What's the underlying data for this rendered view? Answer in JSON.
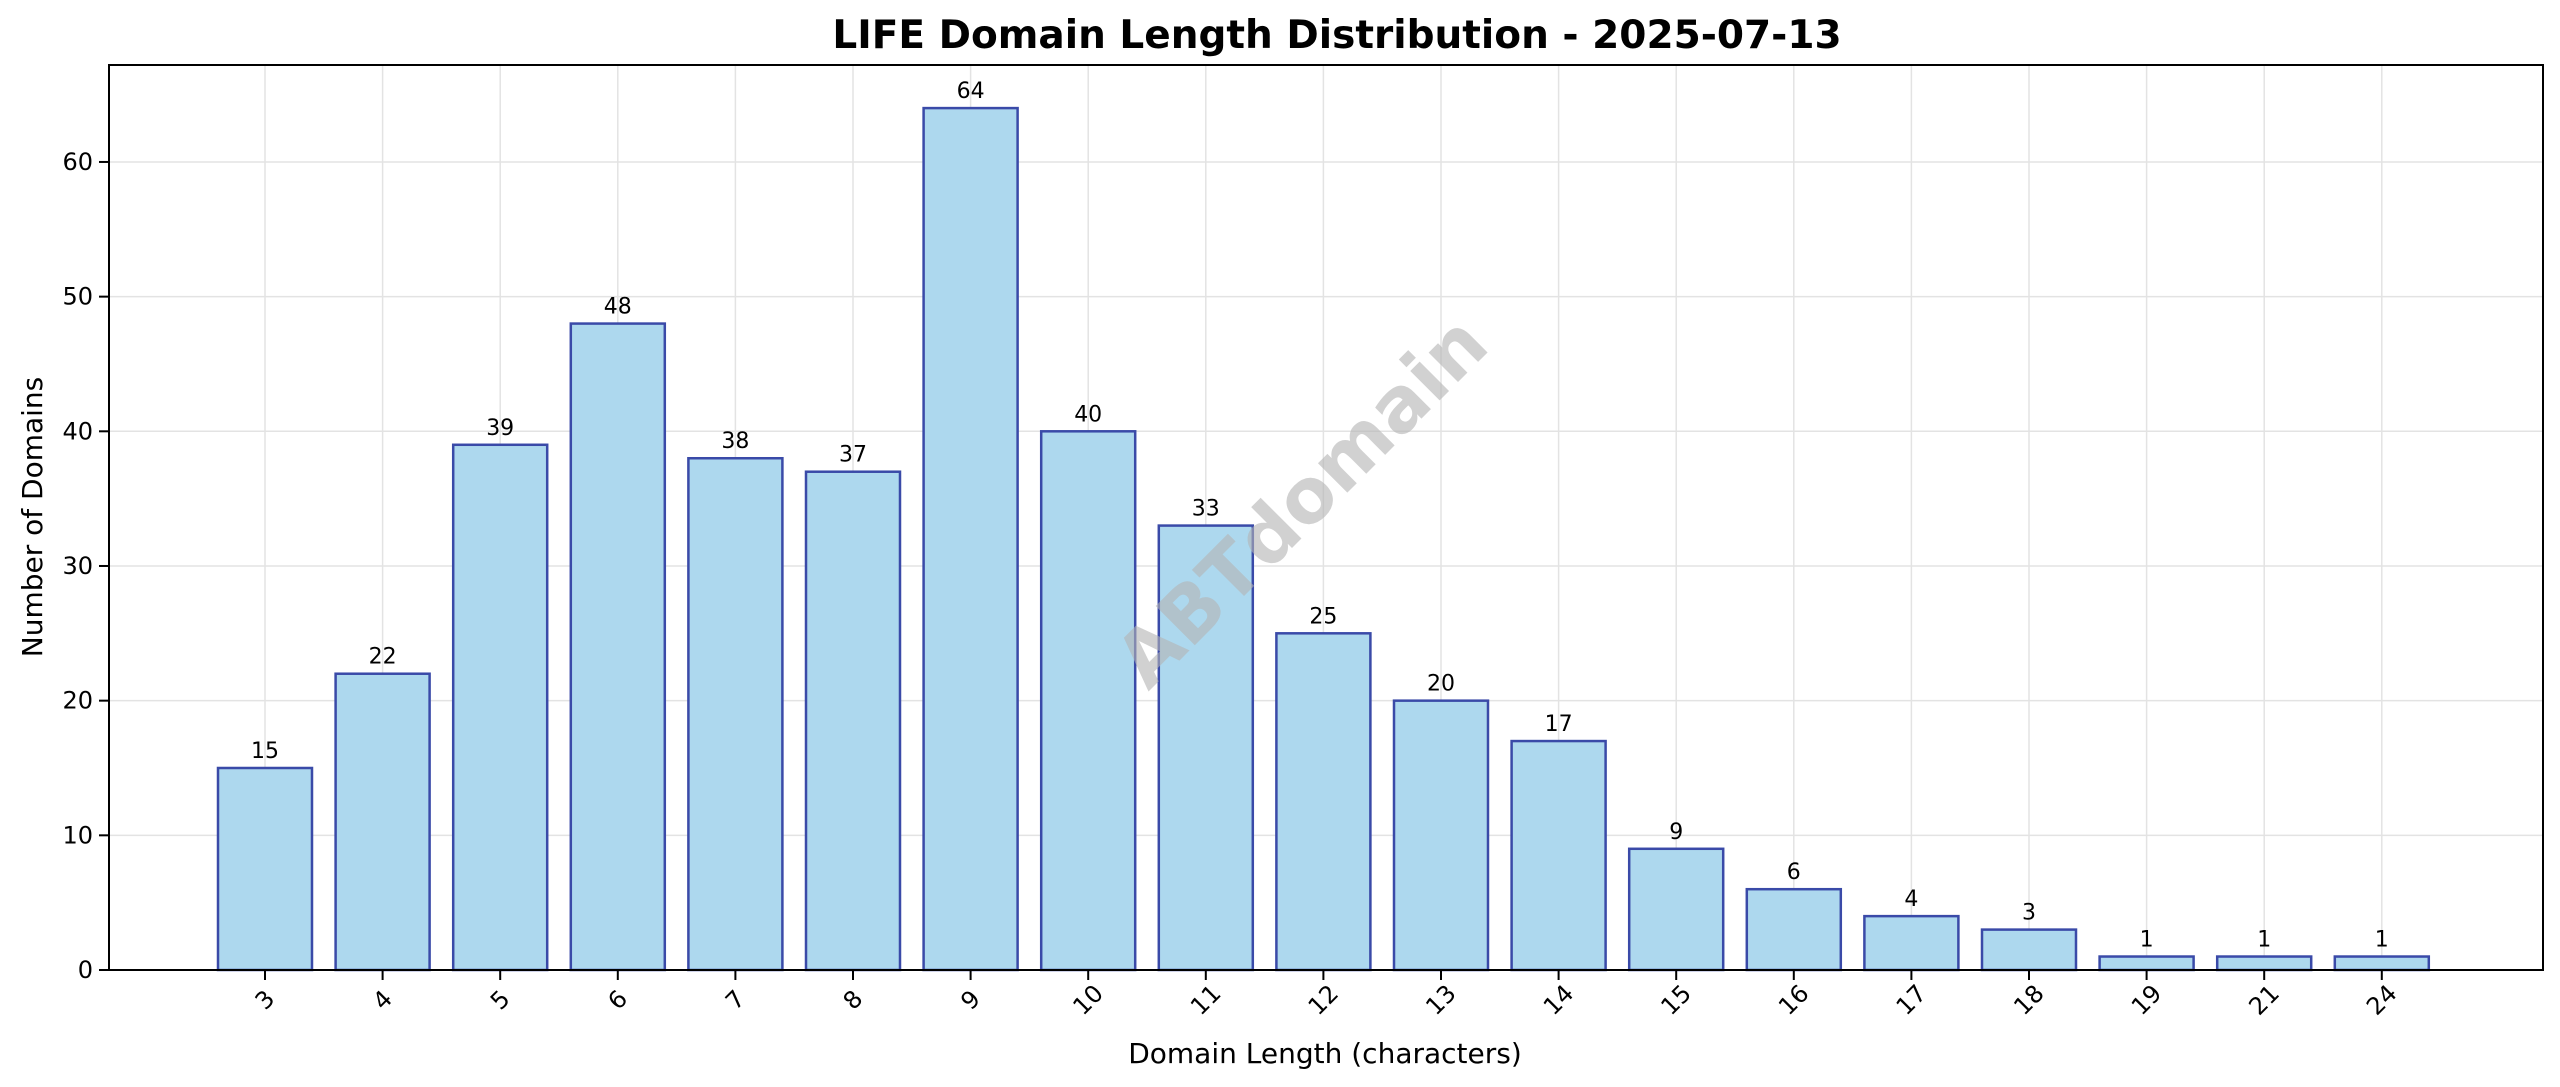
{
  "chart_data": {
    "type": "bar",
    "title": "LIFE Domain Length Distribution - 2025-07-13",
    "xlabel": "Domain Length (characters)",
    "ylabel": "Number of Domains",
    "categories": [
      "3",
      "4",
      "5",
      "6",
      "7",
      "8",
      "9",
      "10",
      "11",
      "12",
      "13",
      "14",
      "15",
      "16",
      "17",
      "18",
      "19",
      "21",
      "24"
    ],
    "values": [
      15,
      22,
      39,
      48,
      38,
      37,
      64,
      40,
      33,
      25,
      20,
      17,
      9,
      6,
      4,
      3,
      1,
      1,
      1
    ],
    "ylim": [
      0,
      67.2
    ],
    "yticks": [
      0,
      10,
      20,
      30,
      40,
      50,
      60
    ],
    "grid": true,
    "bar_color": "#add8ee",
    "bar_edge_color": "#3a4aa8",
    "watermark": "ABTdomain"
  }
}
